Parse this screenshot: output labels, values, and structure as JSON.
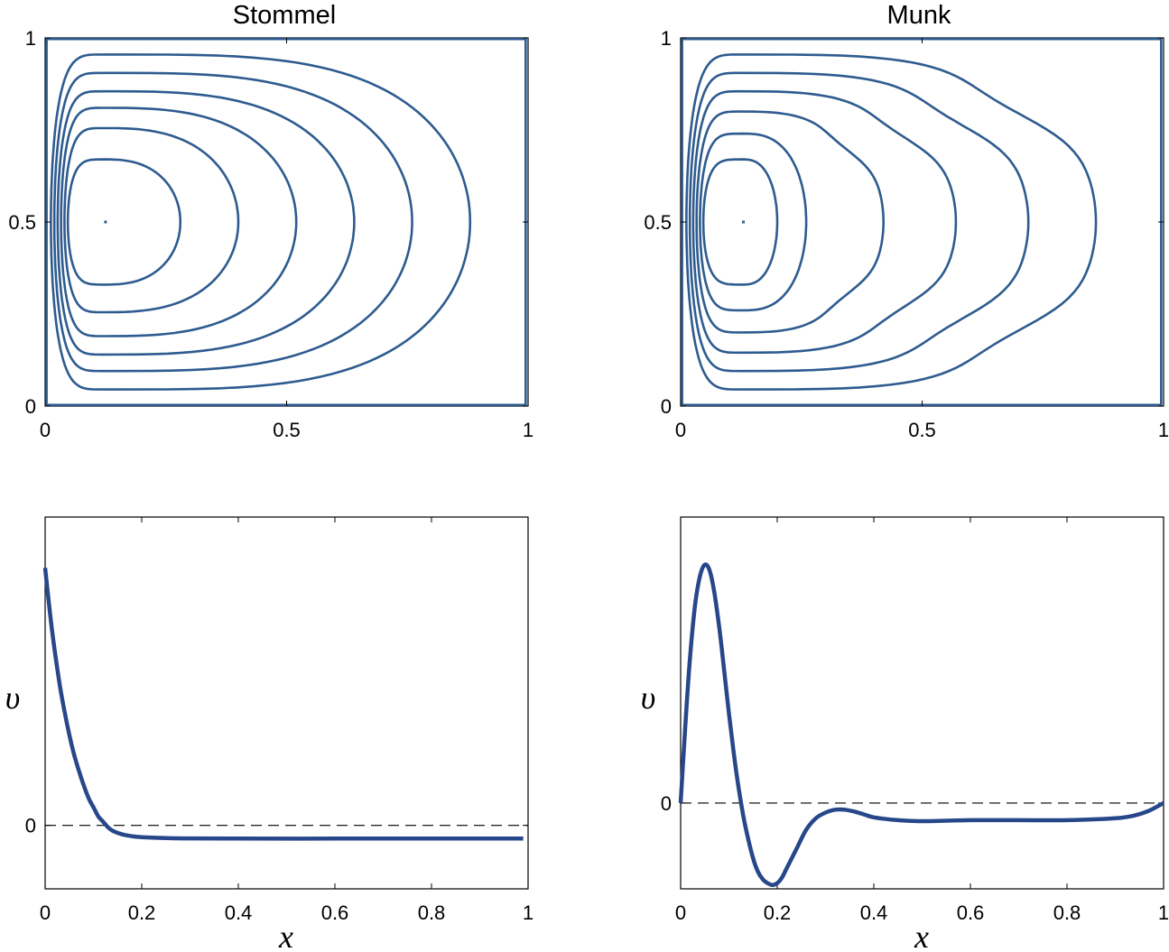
{
  "chart_data": [
    {
      "type": "contour",
      "title": "Stommel",
      "x_ticks": [
        "0",
        "0.5",
        "1"
      ],
      "y_ticks": [
        "0",
        "0.5",
        "1"
      ],
      "xlim": [
        0,
        1
      ],
      "ylim": [
        0,
        1
      ],
      "center": [
        0.125,
        0.5
      ],
      "contours": [
        {
          "xmax": 0.88,
          "ymin": 0.045,
          "ymax": 0.955
        },
        {
          "xmax": 0.76,
          "ymin": 0.095,
          "ymax": 0.905
        },
        {
          "xmax": 0.64,
          "ymin": 0.14,
          "ymax": 0.855
        },
        {
          "xmax": 0.52,
          "ymin": 0.19,
          "ymax": 0.81
        },
        {
          "xmax": 0.4,
          "ymin": 0.255,
          "ymax": 0.755
        },
        {
          "xmax": 0.28,
          "ymin": 0.33,
          "ymax": 0.67
        }
      ]
    },
    {
      "type": "contour",
      "title": "Munk",
      "x_ticks": [
        "0",
        "0.5",
        "1"
      ],
      "y_ticks": [
        "0",
        "0.5",
        "1"
      ],
      "xlim": [
        0,
        1
      ],
      "ylim": [
        0,
        1
      ],
      "center": [
        0.13,
        0.5
      ],
      "contours": [
        {
          "xmax": 0.86,
          "ymin": 0.045,
          "ymax": 0.955
        },
        {
          "xmax": 0.72,
          "ymin": 0.095,
          "ymax": 0.905
        },
        {
          "xmax": 0.57,
          "ymin": 0.145,
          "ymax": 0.855
        },
        {
          "xmax": 0.42,
          "ymin": 0.2,
          "ymax": 0.8
        },
        {
          "xmax": 0.26,
          "ymin": 0.26,
          "ymax": 0.74
        },
        {
          "xmax": 0.2,
          "ymin": 0.33,
          "ymax": 0.67
        }
      ]
    },
    {
      "type": "line",
      "title": "",
      "xlabel": "x",
      "ylabel": "υ",
      "x_ticks": [
        "0",
        "0.2",
        "0.4",
        "0.6",
        "0.8",
        "1"
      ],
      "y_ticks": [
        "0"
      ],
      "xlim": [
        0,
        1
      ],
      "ylim": [
        -0.35,
        1.7
      ],
      "reference_line": 0,
      "series": [
        {
          "x": [
            0,
            0.01,
            0.02,
            0.03,
            0.04,
            0.05,
            0.06,
            0.07,
            0.08,
            0.09,
            0.1,
            0.11,
            0.12,
            0.13,
            0.14,
            0.16,
            0.18,
            0.2,
            0.25,
            0.3,
            0.4,
            0.6,
            0.8,
            0.99
          ],
          "y": [
            1.42,
            1.17,
            0.96,
            0.78,
            0.63,
            0.5,
            0.39,
            0.3,
            0.22,
            0.15,
            0.1,
            0.05,
            0.02,
            -0.01,
            -0.03,
            -0.05,
            -0.06,
            -0.065,
            -0.07,
            -0.072,
            -0.073,
            -0.073,
            -0.073,
            -0.073
          ]
        }
      ]
    },
    {
      "type": "line",
      "title": "",
      "xlabel": "x",
      "ylabel": "υ",
      "x_ticks": [
        "0",
        "0.2",
        "0.4",
        "0.6",
        "0.8",
        "1"
      ],
      "y_ticks": [
        "0"
      ],
      "xlim": [
        0,
        1
      ],
      "ylim": [
        -0.45,
        1.5
      ],
      "reference_line": 0,
      "series": [
        {
          "x": [
            0,
            0.01,
            0.02,
            0.03,
            0.04,
            0.05,
            0.06,
            0.07,
            0.08,
            0.09,
            0.1,
            0.11,
            0.12,
            0.13,
            0.14,
            0.15,
            0.16,
            0.17,
            0.18,
            0.19,
            0.2,
            0.21,
            0.22,
            0.24,
            0.26,
            0.28,
            0.3,
            0.32,
            0.34,
            0.36,
            0.38,
            0.4,
            0.45,
            0.5,
            0.6,
            0.7,
            0.8,
            0.9,
            0.94,
            0.97,
            1.0
          ],
          "y": [
            0,
            0.42,
            0.78,
            1.04,
            1.19,
            1.25,
            1.22,
            1.1,
            0.92,
            0.7,
            0.47,
            0.26,
            0.08,
            -0.07,
            -0.19,
            -0.29,
            -0.36,
            -0.4,
            -0.42,
            -0.43,
            -0.42,
            -0.39,
            -0.34,
            -0.24,
            -0.14,
            -0.08,
            -0.05,
            -0.035,
            -0.035,
            -0.045,
            -0.06,
            -0.075,
            -0.09,
            -0.095,
            -0.09,
            -0.09,
            -0.09,
            -0.08,
            -0.065,
            -0.04,
            0
          ]
        }
      ]
    }
  ]
}
